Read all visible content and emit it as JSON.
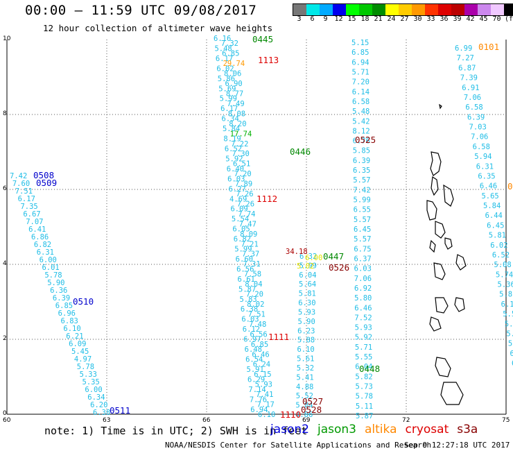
{
  "header": {
    "title": "00:00 – 11:59 UTC 09/08/2017",
    "subtitle": "12 hour collection of altimeter wave heights"
  },
  "colorbar": {
    "colors": [
      "#777777",
      "#00e8e8",
      "#00aaff",
      "#0000ee",
      "#00ff00",
      "#00c800",
      "#008c00",
      "#ffff00",
      "#ffcc00",
      "#ff9900",
      "#ff3300",
      "#dd0000",
      "#bb0000",
      "#aa00aa",
      "#cc88ee",
      "#f0c8ff",
      "#000000"
    ],
    "labels": [
      "3",
      "6",
      "9",
      "12",
      "15",
      "18",
      "21",
      "24",
      "27",
      "30",
      "33",
      "36",
      "39",
      "42",
      "45",
      "70",
      "(ft)"
    ]
  },
  "axes": {
    "y_ticks": [
      "10",
      "8",
      "6",
      "4",
      "2",
      "0"
    ],
    "x_ticks": [
      "60",
      "63",
      "66",
      "69",
      "72",
      "75"
    ]
  },
  "swaths": [
    {
      "sat": "jason2",
      "color": "#1fbde6",
      "values": [
        "7.42",
        "7.60",
        "7.51",
        "6.17",
        "7.35",
        "6.67",
        "7.07",
        "6.41",
        "6.86",
        "6.82",
        "6.31",
        "6.00",
        "6.01",
        "5.78",
        "5.90",
        "6.36",
        "6.39",
        "6.85",
        "6.96",
        "6.83",
        "6.10",
        "6.21",
        "6.09",
        "5.45",
        "4.97",
        "5.78",
        "5.33",
        "5.35",
        "6.00",
        "6.34",
        "6.20",
        "6.38"
      ]
    },
    {
      "sat": "jason3",
      "color": "#1fbde6",
      "values": [
        "6.16",
        "7.32",
        "5.48",
        "6.85",
        "6.17",
        "29.74",
        "6.02",
        "8.06",
        "5.86",
        "6.90",
        "5.69",
        "8.77",
        "5.99",
        "7.49",
        "6.17",
        "8.08",
        "6.34",
        "8.20",
        "5.84",
        "17.74",
        "8.19",
        "7.22",
        "6.52",
        "7.30",
        "5.92",
        "6.51",
        "6.40",
        "7.20",
        "6.03",
        "7.89",
        "6.27",
        "7.26",
        "4.69",
        "7.26",
        "6.09",
        "7.74",
        "5.54",
        "7.47",
        "6.05",
        "8.09",
        "6.82",
        "7.21",
        "5.99",
        "7.37",
        "6.60",
        "7.31",
        "6.56",
        "7.58",
        "6.61",
        "8.04",
        "5.87",
        "7.20",
        "5.83",
        "8.02",
        "6.38",
        "7.51",
        "6.03",
        "7.48",
        "6.12",
        "6.56",
        "6.97",
        "6.85",
        "6.48",
        "6.46",
        "6.54",
        "6.24",
        "5.91",
        "6.15",
        "6.29",
        "5.93",
        "7.14",
        "7.41",
        "7.76",
        "7.17",
        "6.94",
        "6.10"
      ]
    },
    {
      "sat": "altika",
      "color": "#1fbde6",
      "values": [
        "6.32",
        "5.99",
        "6.04",
        "5.64",
        "5.81",
        "6.30",
        "5.93",
        "5.90",
        "6.23",
        "5.88",
        "6.10",
        "5.61",
        "5.32",
        "5.41",
        "4.88",
        "5.52",
        "5.84",
        "4.86"
      ]
    },
    {
      "sat": "jason3",
      "color": "#1fbde6",
      "values": [
        "5.15",
        "6.85",
        "6.94",
        "5.71",
        "7.20",
        "6.14",
        "6.58",
        "5.48",
        "5.42",
        "8.12",
        "6.76",
        "5.85",
        "6.39",
        "6.35",
        "5.57",
        "7.42",
        "5.99",
        "6.55",
        "5.57",
        "6.45",
        "5.57",
        "6.75",
        "6.37",
        "6.03",
        "7.06",
        "6.92",
        "5.80",
        "6.46",
        "7.52",
        "5.93",
        "5.92",
        "5.71",
        "5.55",
        "6.04",
        "5.82",
        "5.73",
        "5.78",
        "5.11",
        "5.87"
      ]
    },
    {
      "sat": "cryosat",
      "color": "#1fbde6",
      "values": [
        "6.99",
        "7.27",
        "6.87",
        "7.39",
        "6.91",
        "7.06",
        "6.58",
        "6.39",
        "7.03",
        "7.06",
        "6.58",
        "5.94",
        "6.31",
        "6.35",
        "6.46",
        "5.65",
        "5.84",
        "6.44",
        "6.45",
        "5.81",
        "6.02",
        "6.52",
        "5.08",
        "5.74",
        "5.36",
        "5.8",
        "6.1",
        "5.5",
        "5.9",
        "5.9",
        "5.5",
        "6.0",
        "6.2"
      ]
    }
  ],
  "highlights": [
    "34.18"
  ],
  "pass_labels": [
    {
      "text": "0445",
      "color": "#008800"
    },
    {
      "text": "1113",
      "color": "#dd0000"
    },
    {
      "text": "0101",
      "color": "#ff8800"
    },
    {
      "text": "0525",
      "color": "#880000"
    },
    {
      "text": "0446",
      "color": "#008800"
    },
    {
      "text": "0508",
      "color": "#0000cc"
    },
    {
      "text": "0509",
      "color": "#0000cc"
    },
    {
      "text": "0",
      "color": "#ff8800"
    },
    {
      "text": "1112",
      "color": "#dd0000"
    },
    {
      "text": "0447",
      "color": "#008800"
    },
    {
      "text": "0526",
      "color": "#880000"
    },
    {
      "text": "0510",
      "color": "#0000cc"
    },
    {
      "text": "1111",
      "color": "#dd0000"
    },
    {
      "text": "0448",
      "color": "#008800"
    },
    {
      "text": "0527",
      "color": "#880000"
    },
    {
      "text": "0528",
      "color": "#880000"
    },
    {
      "text": "1110",
      "color": "#dd0000"
    },
    {
      "text": "0511",
      "color": "#0000cc"
    }
  ],
  "footer": {
    "note": "note: 1) Time is in UTC; 2) SWH is in feet",
    "legend": [
      {
        "name": "jason2",
        "color": "#0000dd"
      },
      {
        "name": "jason3",
        "color": "#009900"
      },
      {
        "name": "altika",
        "color": "#ff8800"
      },
      {
        "name": "cryosat",
        "color": "#dd0000"
      },
      {
        "name": "s3a",
        "color": "#880000"
      }
    ],
    "credit": "NOAA/NESDIS Center for Satellite Applications and Research",
    "timestamp": "Sep  9 12:27:18 UTC 2017"
  }
}
